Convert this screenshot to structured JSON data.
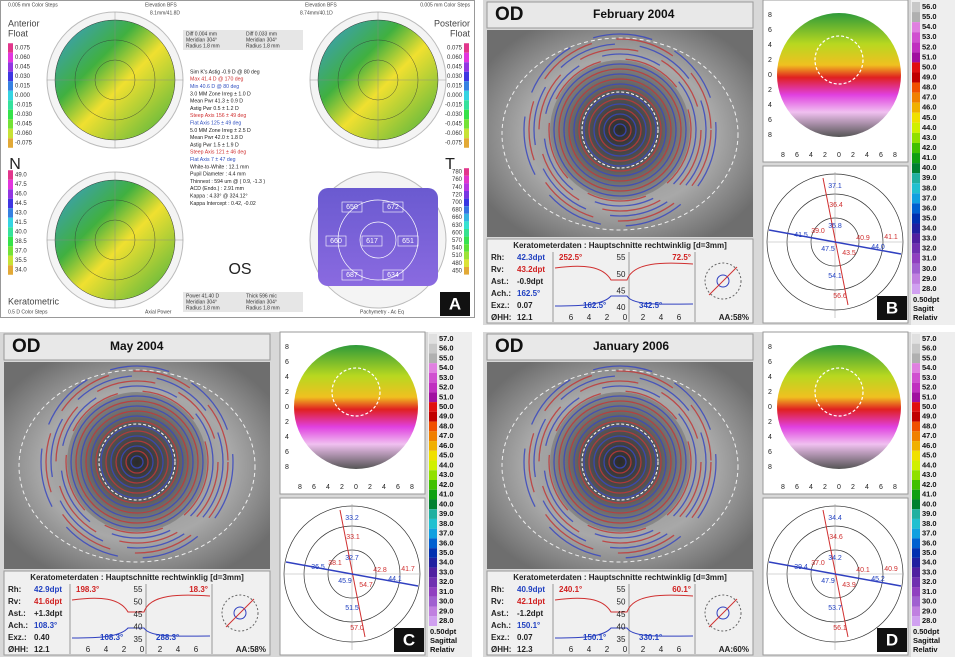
{
  "panel_a": {
    "label": "A",
    "top_left": [
      "0.005 mm Color Steps",
      "Anterior",
      "Float"
    ],
    "top_center": [
      "Elevation BFS",
      "8.1mm/41.8D",
      "Elevation BFS",
      "8.74mm/40.1D"
    ],
    "top_right": [
      "0.005 mm Color Steps",
      "Posterior",
      "Float"
    ],
    "elevation_scale": [
      "0.075",
      "0.060",
      "0.045",
      "0.030",
      "0.015",
      "0.000",
      "-0.015",
      "-0.030",
      "-0.045",
      "-0.060",
      "-0.075"
    ],
    "power_scale": [
      "49.0",
      "47.5",
      "46.0",
      "44.5",
      "43.0",
      "41.5",
      "40.0",
      "38.5",
      "37.0",
      "35.5",
      "34.0"
    ],
    "pachy_scale": [
      "780",
      "760",
      "740",
      "720",
      "700",
      "680",
      "660",
      "630",
      "600",
      "570",
      "540",
      "510",
      "480",
      "450"
    ],
    "side_labels": [
      "N",
      "T",
      "OS"
    ],
    "bottom_left": [
      "Keratometric",
      "0.5 D Color Steps"
    ],
    "bottom_labels": [
      "Axial Power",
      "Pachymetry - Ac Eq"
    ],
    "info_top": [
      "Diff  0.004 mm",
      "Meridian  304°",
      "Radius  1.8 mm",
      "Diff  0.033 mm",
      "Meridian  304°",
      "Radius  1.8 mm"
    ],
    "info_lines": [
      "Sim K's  Astig  -0.9 D @ 80 deg",
      "Max  41.4 D @ 170 deg",
      "Min  40.6 D @ 80 deg",
      "3.0 MM Zone  Irreg  ± 1.0 D",
      "Mean Pwr  41.3 ± 0.9 D",
      "Astig Pwr  0.5 ± 1.2 D",
      "Steep Axis  156 ± 49 deg",
      "Flat Axis  125 ± 49 deg",
      "5.0 MM Zone  Irreg  ± 2.5 D",
      "Mean Pwr  42.0 ± 1.8 D",
      "Astig Pwr  1.5 ± 1.9 D",
      "Steep Axis  121 ± 46 deg",
      "Flat Axis  7 ± 47 deg",
      "White-to-White : 12.1 mm",
      "Pupil Diameter : 4.4 mm",
      "Thinnest : 594 um @ ( 0.9, -1.3 )",
      "ACD (Endo.) : 2.91 mm",
      "Kappa : 4.33° @ 324.12°",
      "Kappa Intercept : 0.42, -0.02"
    ],
    "info_bottom": [
      "Power  41.40 D",
      "Meridian  304°",
      "Radius  1.8 mm",
      "Thick  596 mic",
      "Meridian  304°",
      "Radius  1.8 mm"
    ],
    "pachy_points": [
      "650",
      "672",
      "660",
      "617",
      "651",
      "687",
      "634"
    ]
  },
  "keratometry": [
    {
      "label": "B",
      "eye": "OD",
      "date": "February 2004",
      "map_ticks": [
        "8",
        "6",
        "4",
        "2",
        "0",
        "2",
        "4",
        "6",
        "8"
      ],
      "scale": [
        "56.0",
        "55.0",
        "54.0",
        "53.0",
        "52.0",
        "51.0",
        "50.0",
        "49.0",
        "48.0",
        "47.0",
        "46.0",
        "45.0",
        "44.0",
        "43.0",
        "42.0",
        "41.0",
        "40.0",
        "39.0",
        "38.0",
        "37.0",
        "36.0",
        "35.0",
        "34.0",
        "33.0",
        "32.0",
        "31.0",
        "30.0",
        "29.0",
        "28.0"
      ],
      "scale_footer": [
        "0.50dpt",
        "Sagitt",
        "Relativ"
      ],
      "polar_values": [
        "37.1",
        "36.4",
        "41.5",
        "39.0",
        "35.8",
        "40.9",
        "47.5",
        "43.5",
        "44.0",
        "41.1",
        "54.1",
        "56.6"
      ],
      "table_title": "Keratometerdaten : Hauptschnitte rechtwinklig [d=3mm]",
      "rows": [
        [
          "Rh:",
          "42.3dpt"
        ],
        [
          "Rv:",
          "43.2dpt"
        ],
        [
          "Ast.:",
          "-0.9dpt"
        ],
        [
          "Ach.:",
          "162.5°"
        ],
        [
          "Exz.:",
          "0.07"
        ],
        [
          "ØHH:",
          "12.1"
        ]
      ],
      "angles": [
        "252.5°",
        "72.5°",
        "162.5°",
        "342.5°"
      ],
      "graph_yticks": [
        "55",
        "50",
        "45",
        "40"
      ],
      "graph_xticks": [
        "6",
        "4",
        "2",
        "0",
        "2",
        "4",
        "6"
      ],
      "aa": "AA:58%"
    },
    {
      "label": "C",
      "eye": "OD",
      "date": "May 2004",
      "map_ticks": [
        "8",
        "6",
        "4",
        "2",
        "0",
        "2",
        "4",
        "6",
        "8"
      ],
      "scale": [
        "57.0",
        "56.0",
        "55.0",
        "54.0",
        "53.0",
        "52.0",
        "51.0",
        "50.0",
        "49.0",
        "48.0",
        "47.0",
        "46.0",
        "45.0",
        "44.0",
        "43.0",
        "42.0",
        "41.0",
        "40.0",
        "39.0",
        "38.0",
        "37.0",
        "36.0",
        "35.0",
        "34.0",
        "33.0",
        "32.0",
        "31.0",
        "30.0",
        "29.0",
        "28.0"
      ],
      "scale_footer": [
        "0.50dpt",
        "Sagittal",
        "Relativ"
      ],
      "polar_values": [
        "33.2",
        "33.1",
        "36.5",
        "38.1",
        "32.7",
        "42.8",
        "45.9",
        "54.7",
        "44.1",
        "41.7",
        "51.5",
        "57.0"
      ],
      "table_title": "Keratometerdaten : Hauptschnitte rechtwinklig [d=3mm]",
      "rows": [
        [
          "Rh:",
          "42.9dpt"
        ],
        [
          "Rv:",
          "41.6dpt"
        ],
        [
          "Ast.:",
          "+1.3dpt"
        ],
        [
          "Ach.:",
          "108.3°"
        ],
        [
          "Exz.:",
          "0.40"
        ],
        [
          "ØHH:",
          "12.1"
        ]
      ],
      "angles": [
        "198.3°",
        "18.3°",
        "108.3°",
        "288.3°"
      ],
      "graph_yticks": [
        "55",
        "50",
        "45",
        "40",
        "35"
      ],
      "graph_xticks": [
        "6",
        "4",
        "2",
        "0",
        "2",
        "4",
        "6"
      ],
      "aa": "AA:58%"
    },
    {
      "label": "D",
      "eye": "OD",
      "date": "January 2006",
      "map_ticks": [
        "8",
        "6",
        "4",
        "2",
        "0",
        "2",
        "4",
        "6",
        "8"
      ],
      "scale": [
        "57.0",
        "56.0",
        "55.0",
        "54.0",
        "53.0",
        "52.0",
        "51.0",
        "50.0",
        "49.0",
        "48.0",
        "47.0",
        "46.0",
        "45.0",
        "44.0",
        "43.0",
        "42.0",
        "41.0",
        "40.0",
        "39.0",
        "38.0",
        "37.0",
        "36.0",
        "35.0",
        "34.0",
        "33.0",
        "32.0",
        "31.0",
        "30.0",
        "29.0",
        "28.0"
      ],
      "scale_footer": [
        "0.50dpt",
        "Sagittal",
        "Relativ"
      ],
      "polar_values": [
        "34.4",
        "34.6",
        "39.4",
        "37.0",
        "34.2",
        "40.1",
        "47.9",
        "43.9",
        "45.2",
        "40.9",
        "53.7",
        "56.1"
      ],
      "table_title": "Keratometerdaten : Hauptschnitte rechtwinklig [d=3mm]",
      "rows": [
        [
          "Rh:",
          "40.9dpt"
        ],
        [
          "Rv:",
          "42.1dpt"
        ],
        [
          "Ast.:",
          "-1.2dpt"
        ],
        [
          "Ach.:",
          "150.1°"
        ],
        [
          "Exz.:",
          "0.07"
        ],
        [
          "ØHH:",
          "12.3"
        ]
      ],
      "angles": [
        "240.1°",
        "60.1°",
        "150.1°",
        "330.1°"
      ],
      "graph_yticks": [
        "55",
        "50",
        "45",
        "40",
        "35"
      ],
      "graph_xticks": [
        "6",
        "4",
        "2",
        "0",
        "2",
        "4",
        "6"
      ],
      "aa": "AA:60%"
    }
  ]
}
